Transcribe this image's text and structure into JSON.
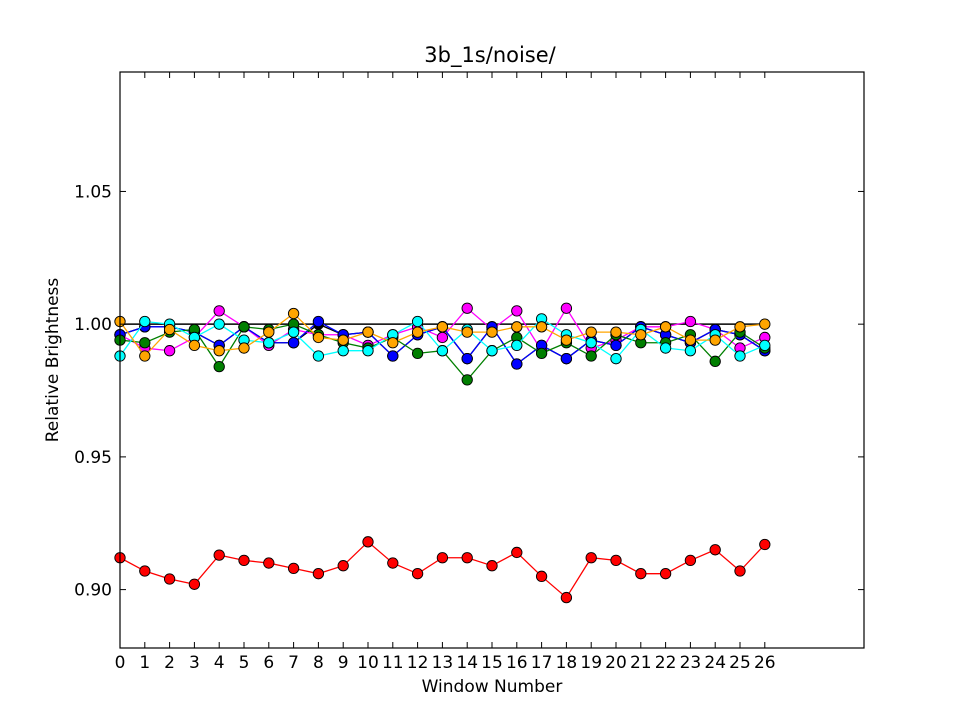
{
  "chart_data": {
    "type": "line",
    "title": "3b_1s/noise/",
    "xlabel": "Window Number",
    "ylabel": "Relative Brightness",
    "xlim": [
      0,
      30
    ],
    "ylim": [
      0.878,
      1.095
    ],
    "x_ticks": [
      0,
      1,
      2,
      3,
      4,
      5,
      6,
      7,
      8,
      9,
      10,
      11,
      12,
      13,
      14,
      15,
      16,
      17,
      18,
      19,
      20,
      21,
      22,
      23,
      24,
      25,
      26
    ],
    "y_ticks": [
      0.9,
      0.95,
      1.0,
      1.05
    ],
    "y_tick_labels": [
      "0.90",
      "0.95",
      "1.00",
      "1.05"
    ],
    "reference_line": {
      "y": 1.0,
      "x_range": [
        0,
        26
      ],
      "color": "#000000"
    },
    "series": [
      {
        "name": "black",
        "color": "#000000",
        "values": [
          0.996,
          0.999,
          0.999,
          0.997,
          0.992,
          0.999,
          0.993,
          0.993,
          1.0,
          0.996,
          0.997,
          0.988,
          0.996,
          0.999,
          0.987,
          0.999,
          0.985,
          0.992,
          0.987,
          0.994,
          0.992,
          0.999,
          0.996,
          0.993,
          0.998,
          0.996,
          0.99
        ]
      },
      {
        "name": "magenta",
        "color": "#ff00ff",
        "values": [
          0.996,
          0.991,
          0.99,
          0.995,
          1.005,
          0.999,
          0.992,
          0.998,
          0.996,
          0.996,
          0.992,
          0.996,
          0.999,
          0.995,
          1.006,
          0.998,
          1.005,
          0.99,
          1.006,
          0.991,
          0.994,
          0.999,
          0.999,
          1.001,
          0.998,
          0.991,
          0.995
        ]
      },
      {
        "name": "blue",
        "color": "#0000ff",
        "values": [
          0.996,
          0.999,
          0.999,
          0.997,
          0.992,
          0.999,
          0.993,
          0.993,
          1.001,
          0.996,
          0.997,
          0.988,
          0.996,
          0.999,
          0.987,
          0.999,
          0.985,
          0.992,
          0.987,
          0.994,
          0.992,
          0.999,
          0.996,
          0.993,
          0.998,
          0.996,
          0.99
        ]
      },
      {
        "name": "green",
        "color": "#007f00",
        "values": [
          0.994,
          0.993,
          0.997,
          0.998,
          0.984,
          0.999,
          0.998,
          1.0,
          0.996,
          0.993,
          0.991,
          0.995,
          0.989,
          0.99,
          0.979,
          0.99,
          0.995,
          0.989,
          0.993,
          0.988,
          0.996,
          0.993,
          0.993,
          0.996,
          0.986,
          0.997,
          0.991
        ]
      },
      {
        "name": "cyan",
        "color": "#00ffff",
        "values": [
          0.988,
          1.001,
          1.0,
          0.995,
          1.0,
          0.994,
          0.993,
          0.997,
          0.988,
          0.99,
          0.99,
          0.996,
          1.001,
          0.99,
          0.998,
          0.99,
          0.992,
          1.002,
          0.996,
          0.993,
          0.987,
          0.998,
          0.991,
          0.99,
          0.996,
          0.988,
          0.992
        ]
      },
      {
        "name": "orange",
        "color": "#ffa500",
        "values": [
          1.001,
          0.988,
          0.998,
          0.992,
          0.99,
          0.991,
          0.997,
          1.004,
          0.995,
          0.994,
          0.997,
          0.993,
          0.997,
          0.999,
          0.997,
          0.997,
          0.999,
          0.999,
          0.994,
          0.997,
          0.997,
          0.996,
          0.999,
          0.994,
          0.994,
          0.999,
          1.0
        ]
      },
      {
        "name": "red",
        "color": "#ff0000",
        "values": [
          0.912,
          0.907,
          0.904,
          0.902,
          0.913,
          0.911,
          0.91,
          0.908,
          0.906,
          0.909,
          0.918,
          0.91,
          0.906,
          0.912,
          0.912,
          0.909,
          0.914,
          0.905,
          0.897,
          0.912,
          0.911,
          0.906,
          0.906,
          0.911,
          0.915,
          0.907,
          0.917
        ]
      }
    ]
  }
}
